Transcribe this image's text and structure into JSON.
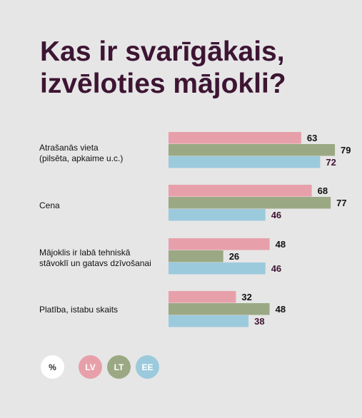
{
  "title": [
    "Kas ir svarīgākais,",
    "izvēloties mājokli?"
  ],
  "colors": {
    "LV": "#e7a0aa",
    "LT": "#9aa984",
    "EE": "#9ccadd",
    "label_dark": "#111111",
    "label_ee": "#3d1533",
    "title": "#3d1533"
  },
  "legend": {
    "unit": "%",
    "LV": "LV",
    "LT": "LT",
    "EE": "EE"
  },
  "chart_data": {
    "type": "bar",
    "orientation": "horizontal",
    "title": "Kas ir svarīgākais, izvēloties mājokli?",
    "unit": "%",
    "categories": [
      [
        "Atrašanās vieta",
        "(pilsēta, apkaime u.c.)"
      ],
      [
        "Cena"
      ],
      [
        "Mājoklis ir labā tehniskā",
        "stāvoklī un gatavs dzīvošanai"
      ],
      [
        "Platība, istabu skaits"
      ]
    ],
    "series": [
      {
        "name": "LV",
        "values": [
          63,
          68,
          48,
          32
        ]
      },
      {
        "name": "LT",
        "values": [
          79,
          77,
          26,
          48
        ]
      },
      {
        "name": "EE",
        "values": [
          72,
          46,
          46,
          38
        ]
      }
    ],
    "xlim": [
      0,
      100
    ],
    "grid": false,
    "legend_position": "bottom-left"
  }
}
